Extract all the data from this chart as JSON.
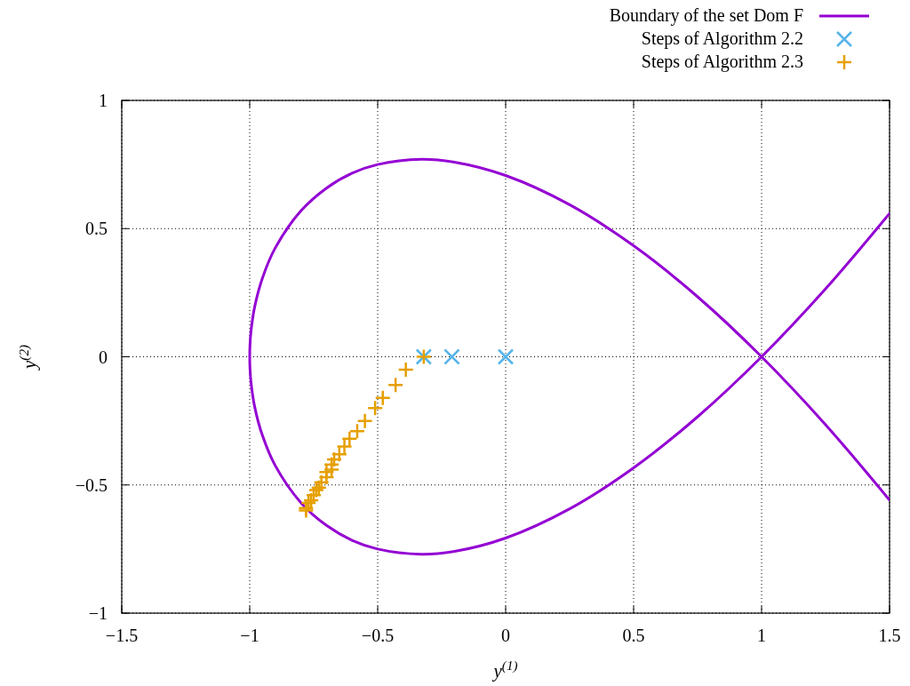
{
  "chart_data": {
    "type": "line",
    "xlabel": "y$^{(1)}$",
    "ylabel": "y$^{(2)}$",
    "xlim": [
      -1.5,
      1.5
    ],
    "ylim": [
      -1,
      1
    ],
    "xticks": [
      {
        "value": -1.5,
        "label": "−1.5"
      },
      {
        "value": -1,
        "label": "−1"
      },
      {
        "value": -0.5,
        "label": "−0.5"
      },
      0,
      0.5,
      1,
      1.5
    ],
    "yticks": [
      {
        "value": -1,
        "label": "−1"
      },
      {
        "value": -0.5,
        "label": "−0.5"
      },
      0,
      0.5,
      1
    ],
    "grid": true,
    "legend": "top right",
    "line_style": "solid",
    "series": [
      {
        "name": "Boundary of the set Dom F",
        "color": "#9400d3",
        "marker": "none",
        "x": [
          1.5,
          1.25,
          1,
          0.75,
          0.5,
          0.25,
          0,
          -0.2,
          -0.33,
          -0.5,
          -0.6,
          -0.7,
          -0.8,
          -0.9,
          -0.95,
          -0.98,
          -0.995,
          -0.999,
          -1,
          -0.999,
          -0.995,
          -0.98,
          -0.95,
          -0.9,
          -0.8,
          -0.7,
          -0.6,
          -0.5,
          -0.33,
          -0.2,
          0,
          0.25,
          0.5,
          0.75,
          1,
          1.25,
          1.5
        ],
        "values": [
          -0.559,
          -0.265,
          0,
          0.234,
          0.433,
          0.593,
          0.707,
          0.759,
          0.77,
          0.75,
          0.716,
          0.658,
          0.569,
          0.425,
          0.308,
          0.198,
          0.1,
          0.045,
          0,
          -0.045,
          -0.1,
          -0.198,
          -0.308,
          -0.425,
          -0.569,
          -0.658,
          -0.716,
          -0.75,
          -0.77,
          -0.759,
          -0.707,
          -0.593,
          -0.433,
          -0.234,
          0,
          0.265,
          0.559
        ]
      },
      {
        "name": "Steps of Algorithm 2.2",
        "type": "scatter",
        "color": "#56b4e9",
        "marker": "x",
        "x": [
          0,
          -0.21,
          -0.32
        ],
        "values": [
          0,
          0,
          0
        ]
      },
      {
        "name": "Steps of Algorithm 2.3",
        "type": "scatter",
        "color": "#e69f00",
        "marker": "cross",
        "x": [
          -0.32,
          -0.39,
          -0.43,
          -0.48,
          -0.51,
          -0.55,
          -0.58,
          -0.61,
          -0.63,
          -0.65,
          -0.67,
          -0.68,
          -0.68,
          -0.7,
          -0.7,
          -0.72,
          -0.73,
          -0.74,
          -0.75,
          -0.76,
          -0.77,
          -0.78,
          -0.78
        ],
        "values": [
          0,
          -0.05,
          -0.11,
          -0.16,
          -0.2,
          -0.25,
          -0.29,
          -0.32,
          -0.35,
          -0.38,
          -0.4,
          -0.42,
          -0.44,
          -0.45,
          -0.47,
          -0.49,
          -0.51,
          -0.52,
          -0.54,
          -0.56,
          -0.57,
          -0.59,
          -0.6
        ]
      }
    ]
  }
}
